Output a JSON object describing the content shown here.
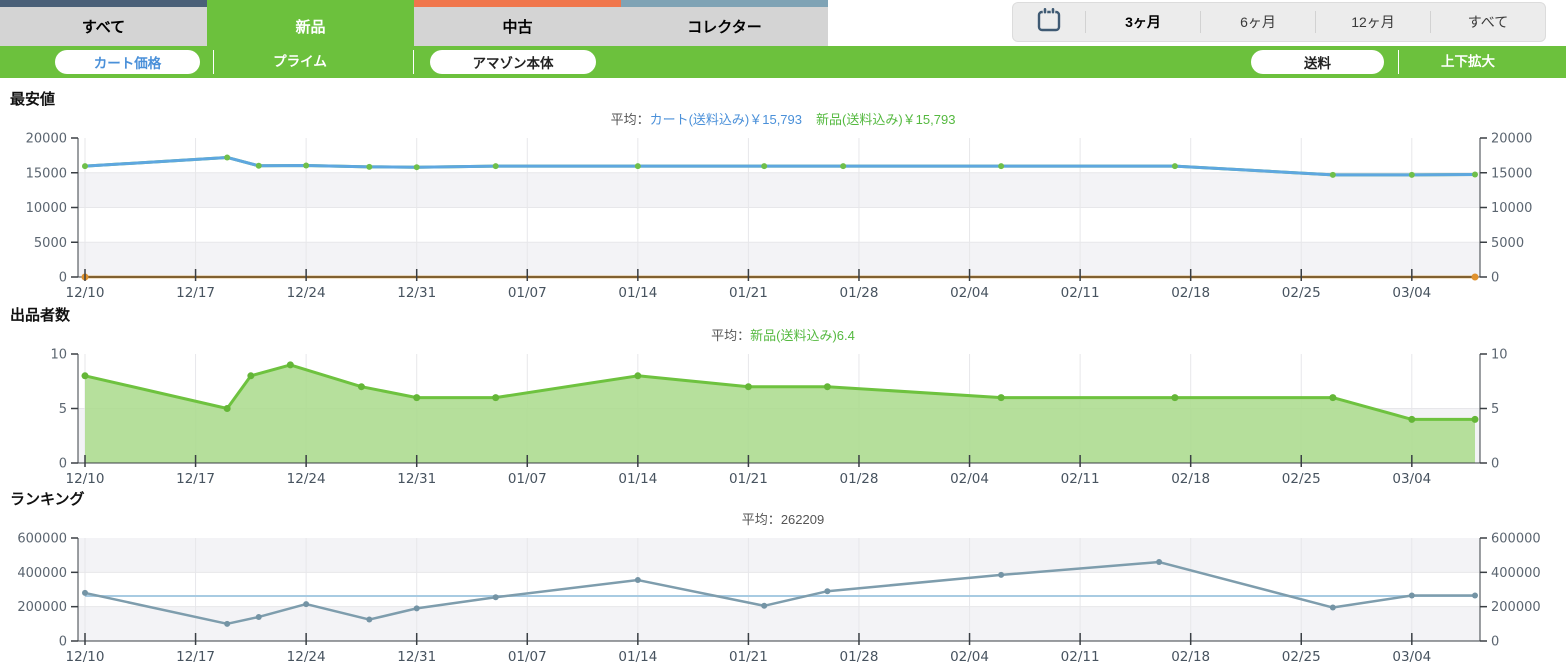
{
  "header": {
    "tabs": [
      {
        "label": "すべて",
        "accent": "#4a6078",
        "active": false
      },
      {
        "label": "新品",
        "accent": "#6cc13d",
        "active": true
      },
      {
        "label": "中古",
        "accent": "#f0764c",
        "active": false
      },
      {
        "label": "コレクター",
        "accent": "#7fa3b5",
        "active": false
      }
    ],
    "range": {
      "options": [
        {
          "label": "3ヶ月",
          "active": true
        },
        {
          "label": "6ヶ月",
          "active": false
        },
        {
          "label": "12ヶ月",
          "active": false
        },
        {
          "label": "すべて",
          "active": false
        }
      ]
    }
  },
  "toolbar": {
    "cart_price": "カート価格",
    "prime": "プライム",
    "amazon_body": "アマゾン本体",
    "shipping": "送料",
    "expand": "上下拡大"
  },
  "colors": {
    "green": "#6cc13d",
    "band": "#f3f3f6",
    "grid": "#e7e7ea",
    "axis": "#3a3f44",
    "y_label": "#5b6570",
    "x_label": "#47535f"
  },
  "chart_data": [
    {
      "type": "line",
      "title": "最安値",
      "avg_label": "平均：",
      "avg_series": [
        {
          "text": "カート(送料込み)￥15,793",
          "color": "#4a90d9"
        },
        {
          "text": "新品(送料込み)￥15,793",
          "color": "#54b93f"
        }
      ],
      "ylim": [
        0,
        20000
      ],
      "yticks": [
        0,
        5000,
        10000,
        15000,
        20000
      ],
      "x_range_days": [
        0,
        88
      ],
      "x_tick_days": [
        0,
        7,
        14,
        21,
        28,
        35,
        42,
        49,
        56,
        63,
        70,
        77,
        84
      ],
      "x_tick_labels": [
        "12/10",
        "12/17",
        "12/24",
        "12/31",
        "01/07",
        "01/14",
        "01/21",
        "01/28",
        "02/04",
        "02/11",
        "02/18",
        "02/25",
        "03/04"
      ],
      "series": [
        {
          "name": "新品(送料込み)",
          "line_color": "#74c14e",
          "line_width": 3,
          "marker_color": "#6fbf4a",
          "marker_r": 3,
          "points": [
            [
              0,
              15950
            ],
            [
              9,
              17200
            ],
            [
              11,
              16000
            ],
            [
              14,
              16050
            ],
            [
              18,
              15850
            ],
            [
              21,
              15800
            ],
            [
              26,
              15950
            ],
            [
              35,
              15950
            ],
            [
              43,
              15950
            ],
            [
              48,
              15950
            ],
            [
              58,
              15950
            ],
            [
              69,
              15950
            ],
            [
              79,
              14700
            ],
            [
              84,
              14700
            ],
            [
              88,
              14750
            ]
          ]
        },
        {
          "name": "カート(送料込み)",
          "line_color": "#5ea7e0",
          "line_width": 3,
          "points": [
            [
              0,
              15950
            ],
            [
              9,
              17200
            ],
            [
              11,
              16000
            ],
            [
              14,
              16050
            ],
            [
              18,
              15850
            ],
            [
              21,
              15800
            ],
            [
              26,
              15950
            ],
            [
              35,
              15950
            ],
            [
              43,
              15950
            ],
            [
              48,
              15950
            ],
            [
              58,
              15950
            ],
            [
              69,
              15950
            ],
            [
              79,
              14700
            ],
            [
              84,
              14700
            ],
            [
              88,
              14750
            ]
          ]
        },
        {
          "name": "アマゾン",
          "line_color": "#c8831e",
          "line_width": 2.5,
          "marker_color": "#e0922e",
          "marker_r": 3.5,
          "marker_days": [
            0,
            88
          ],
          "points": [
            [
              0,
              0
            ],
            [
              88,
              0
            ]
          ]
        }
      ]
    },
    {
      "type": "area",
      "title": "出品者数",
      "avg_label": "平均：",
      "avg_series": [
        {
          "text": "新品(送料込み)6.4",
          "color": "#54b93f"
        }
      ],
      "ylim": [
        0,
        10
      ],
      "yticks": [
        0,
        5,
        10
      ],
      "x_range_days": [
        0,
        88
      ],
      "x_tick_days": [
        0,
        7,
        14,
        21,
        28,
        35,
        42,
        49,
        56,
        63,
        70,
        77,
        84
      ],
      "x_tick_labels": [
        "12/10",
        "12/17",
        "12/24",
        "12/31",
        "01/07",
        "01/14",
        "01/21",
        "01/28",
        "02/04",
        "02/11",
        "02/18",
        "02/25",
        "03/04"
      ],
      "series": [
        {
          "name": "新品(送料込み)",
          "line_color": "#6ec23f",
          "line_width": 3,
          "marker_color": "#64b637",
          "marker_r": 3.5,
          "fill": "#a9db8b",
          "fill_opacity": 0.85,
          "points": [
            [
              0,
              8
            ],
            [
              9,
              5
            ],
            [
              10.5,
              8
            ],
            [
              13,
              9
            ],
            [
              17.5,
              7
            ],
            [
              21,
              6
            ],
            [
              26,
              6
            ],
            [
              35,
              8
            ],
            [
              42,
              7
            ],
            [
              47,
              7
            ],
            [
              58,
              6
            ],
            [
              69,
              6
            ],
            [
              79,
              6
            ],
            [
              84,
              4
            ],
            [
              88,
              4
            ]
          ]
        }
      ]
    },
    {
      "type": "line",
      "title": "ランキング",
      "avg_label": "平均：",
      "avg_series": [
        {
          "text": "262209",
          "color": "#555555"
        }
      ],
      "ylim": [
        0,
        600000
      ],
      "yticks": [
        0,
        200000,
        400000,
        600000
      ],
      "avg_line": {
        "value": 262209,
        "color": "#a8cbe2"
      },
      "x_range_days": [
        0,
        88
      ],
      "x_tick_days": [
        0,
        7,
        14,
        21,
        28,
        35,
        42,
        49,
        56,
        63,
        70,
        77,
        84
      ],
      "x_tick_labels": [
        "12/10",
        "12/17",
        "12/24",
        "12/31",
        "01/07",
        "01/14",
        "01/21",
        "01/28",
        "02/04",
        "02/11",
        "02/18",
        "02/25",
        "03/04"
      ],
      "series": [
        {
          "name": "ランキング",
          "line_color": "#7e9dad",
          "line_width": 2.5,
          "marker_color": "#7494a5",
          "marker_r": 3,
          "points": [
            [
              0,
              280000
            ],
            [
              9,
              100000
            ],
            [
              11,
              140000
            ],
            [
              14,
              215000
            ],
            [
              18,
              125000
            ],
            [
              21,
              190000
            ],
            [
              26,
              255000
            ],
            [
              35,
              355000
            ],
            [
              43,
              205000
            ],
            [
              47,
              290000
            ],
            [
              58,
              385000
            ],
            [
              68,
              460000
            ],
            [
              79,
              195000
            ],
            [
              84,
              265000
            ],
            [
              88,
              265000
            ]
          ]
        }
      ]
    }
  ]
}
